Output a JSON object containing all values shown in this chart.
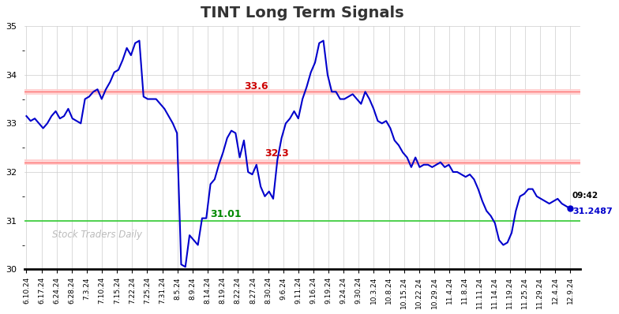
{
  "title": "TINT Long Term Signals",
  "title_fontsize": 14,
  "title_fontweight": "bold",
  "background_color": "#ffffff",
  "line_color": "#0000cc",
  "line_width": 1.5,
  "ylim": [
    30,
    35
  ],
  "hline_green": 31.0,
  "hline_red1": 33.65,
  "hline_red2": 32.2,
  "hline_green_color": "#33cc33",
  "hline_red_color": "#ff6666",
  "hline_red_fill_color": "#ffcccc",
  "annotation_33_6_xi": 52,
  "annotation_32_3_xi": 57,
  "annotation_31_01_xi": 44,
  "annotation_red_color": "#cc0000",
  "annotation_green_color": "#008800",
  "watermark": "Stock Traders Daily",
  "watermark_color": "#bbbbbb",
  "last_label_time": "09:42",
  "last_label_value": "31.2487",
  "xtick_labels": [
    "6.10.24",
    "6.17.24",
    "6.24.24",
    "6.28.24",
    "7.3.24",
    "7.10.24",
    "7.15.24",
    "7.22.24",
    "7.25.24",
    "7.31.24",
    "8.5.24",
    "8.9.24",
    "8.14.24",
    "8.19.24",
    "8.22.24",
    "8.27.24",
    "8.30.24",
    "9.6.24",
    "9.11.24",
    "9.16.24",
    "9.19.24",
    "9.24.24",
    "9.30.24",
    "10.3.24",
    "10.8.24",
    "10.15.24",
    "10.22.24",
    "10.29.24",
    "11.4.24",
    "11.8.24",
    "11.11.24",
    "11.14.24",
    "11.19.24",
    "11.25.24",
    "11.29.24",
    "12.4.24",
    "12.9.24"
  ],
  "prices": [
    33.15,
    33.05,
    33.1,
    33.0,
    32.9,
    33.0,
    33.15,
    33.25,
    33.1,
    33.15,
    33.3,
    33.1,
    33.05,
    33.0,
    33.5,
    33.55,
    33.65,
    33.7,
    33.5,
    33.7,
    33.85,
    34.05,
    34.1,
    34.3,
    34.55,
    34.4,
    34.65,
    34.7,
    33.55,
    33.5,
    33.5,
    33.5,
    33.4,
    33.3,
    33.15,
    33.0,
    32.8,
    30.1,
    30.05,
    30.7,
    30.6,
    30.5,
    31.05,
    31.05,
    31.75,
    31.85,
    32.15,
    32.4,
    32.7,
    32.85,
    32.8,
    32.3,
    32.65,
    32.0,
    31.95,
    32.15,
    31.7,
    31.5,
    31.6,
    31.45,
    32.25,
    32.7,
    33.0,
    33.1,
    33.25,
    33.1,
    33.5,
    33.75,
    34.05,
    34.25,
    34.65,
    34.7,
    34.0,
    33.65,
    33.65,
    33.5,
    33.5,
    33.55,
    33.6,
    33.5,
    33.4,
    33.65,
    33.5,
    33.3,
    33.05,
    33.0,
    33.05,
    32.9,
    32.65,
    32.55,
    32.4,
    32.3,
    32.1,
    32.3,
    32.1,
    32.15,
    32.15,
    32.1,
    32.15,
    32.2,
    32.1,
    32.15,
    32.0,
    32.0,
    31.95,
    31.9,
    31.95,
    31.85,
    31.65,
    31.4,
    31.2,
    31.1,
    30.95,
    30.6,
    30.5,
    30.55,
    30.75,
    31.2,
    31.5,
    31.55,
    31.65,
    31.65,
    31.5,
    31.45,
    31.4,
    31.35,
    31.4,
    31.45,
    31.35,
    31.3,
    31.2487
  ]
}
